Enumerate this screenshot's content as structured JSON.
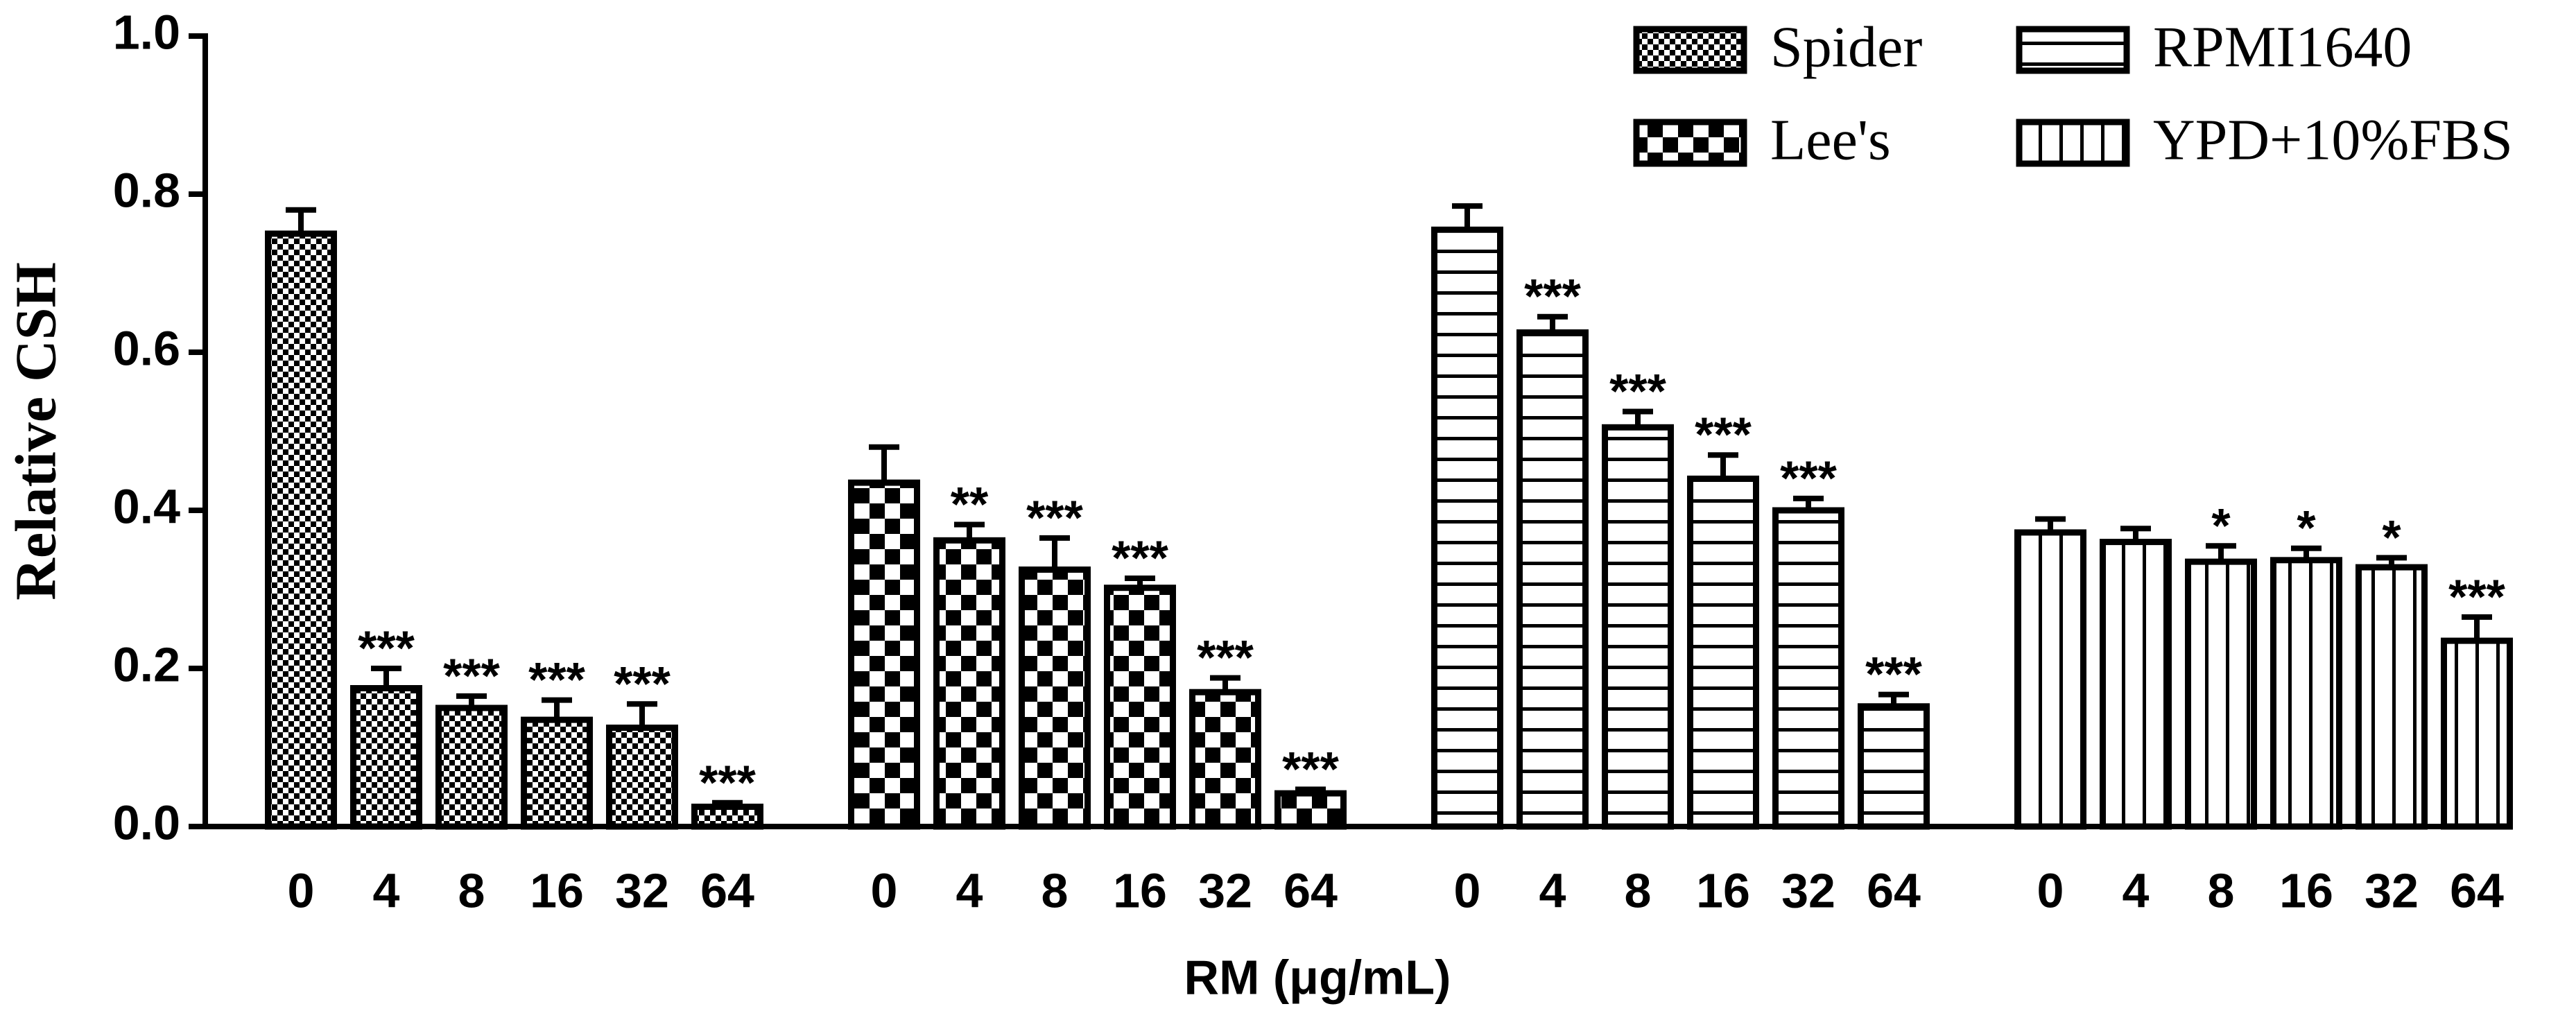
{
  "chart_data": {
    "type": "bar",
    "ylabel": "Relative CSH",
    "xlabel": "RM (μg/mL)",
    "categories": [
      "0",
      "4",
      "8",
      "16",
      "32",
      "64"
    ],
    "ylim": [
      0,
      1.0
    ],
    "yticks": [
      {
        "value": 0,
        "label": "0.0"
      },
      {
        "value": 0.2,
        "label": "0.2"
      },
      {
        "value": 0.4,
        "label": "0.4"
      },
      {
        "value": 0.6,
        "label": "0.6"
      },
      {
        "value": 0.8,
        "label": "0.8"
      },
      {
        "value": 1.0,
        "label": "1.0"
      }
    ],
    "legend": "upper right",
    "series": [
      {
        "name": "Spider",
        "pattern": "fine-check",
        "values": [
          0.75,
          0.175,
          0.15,
          0.135,
          0.125,
          0.025
        ],
        "errors": [
          0.03,
          0.025,
          0.015,
          0.025,
          0.03,
          0.005
        ],
        "annotations": [
          null,
          "***",
          "***",
          "***",
          "***",
          "***"
        ]
      },
      {
        "name": "Lee's",
        "pattern": "coarse-check",
        "values": [
          0.435,
          0.362,
          0.325,
          0.302,
          0.17,
          0.042
        ],
        "errors": [
          0.045,
          0.02,
          0.04,
          0.012,
          0.018,
          0.005
        ],
        "annotations": [
          null,
          "**",
          "***",
          "***",
          "***",
          "***"
        ]
      },
      {
        "name": "RPMI1640",
        "pattern": "horizontal",
        "values": [
          0.755,
          0.625,
          0.505,
          0.44,
          0.4,
          0.152
        ],
        "errors": [
          0.03,
          0.02,
          0.02,
          0.03,
          0.015,
          0.015
        ],
        "annotations": [
          null,
          "***",
          "***",
          "***",
          "***",
          "***"
        ]
      },
      {
        "name": "YPD+10%FBS",
        "pattern": "vertical",
        "values": [
          0.372,
          0.36,
          0.335,
          0.337,
          0.328,
          0.235
        ],
        "errors": [
          0.017,
          0.017,
          0.02,
          0.015,
          0.012,
          0.03
        ],
        "annotations": [
          null,
          null,
          "*",
          "*",
          "*",
          "***"
        ]
      }
    ]
  }
}
